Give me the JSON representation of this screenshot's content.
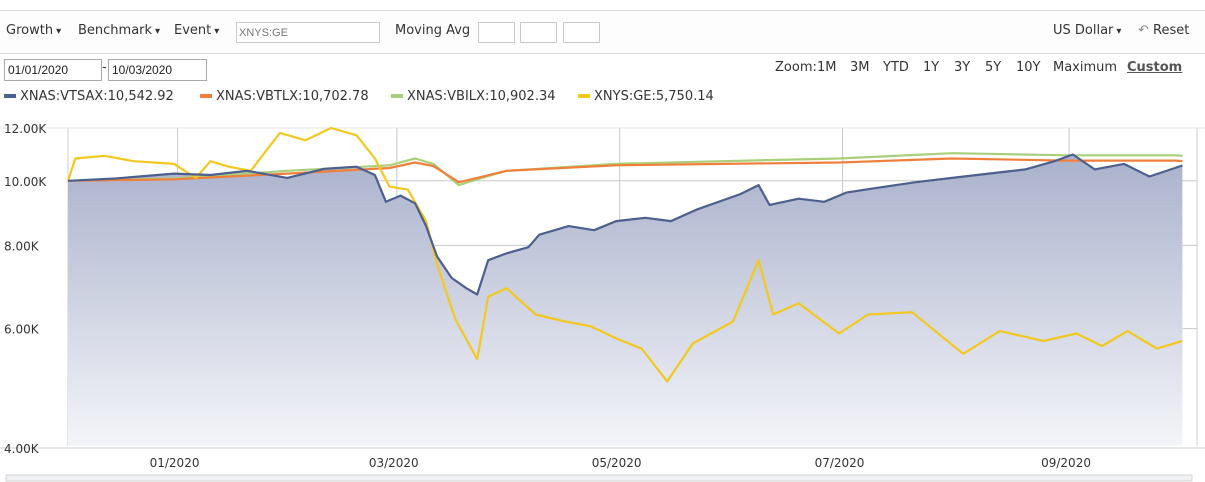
{
  "toolbar": {
    "growth_label": "Growth",
    "benchmark_label": "Benchmark",
    "event_label": "Event",
    "symbol_placeholder": "XNYS:GE",
    "moving_avg_label": "Moving Avg",
    "currency_label": "US Dollar",
    "reset_label": "Reset",
    "caret": "▾",
    "reset_icon": "↶"
  },
  "dates": {
    "start": "01/01/2020",
    "separator": "-",
    "end": "10/03/2020"
  },
  "zoom": {
    "label": "Zoom:",
    "options": [
      "1M",
      "3M",
      "YTD",
      "1Y",
      "3Y",
      "5Y",
      "10Y",
      "Maximum",
      "Custom"
    ],
    "active": "Custom"
  },
  "chart_data": {
    "type": "line",
    "y_axis": {
      "ticks": [
        {
          "value": 4000,
          "label": "4.00K"
        },
        {
          "value": 6000,
          "label": "6.00K"
        },
        {
          "value": 8000,
          "label": "8.00K"
        },
        {
          "value": 10000,
          "label": "10.00K"
        },
        {
          "value": 12000,
          "label": "12.00K"
        }
      ],
      "range": [
        4000,
        12000
      ],
      "scale": "log"
    },
    "x_axis": {
      "range": [
        "2019-12-02",
        "2020-10-06"
      ],
      "ticks": [
        {
          "date": "2020-01-01",
          "label": "01/2020"
        },
        {
          "date": "2020-03-01",
          "label": "03/2020"
        },
        {
          "date": "2020-05-01",
          "label": "05/2020"
        },
        {
          "date": "2020-07-01",
          "label": "07/2020"
        },
        {
          "date": "2020-09-01",
          "label": "09/2020"
        }
      ]
    },
    "grid": true,
    "series": [
      {
        "name": "XNAS:VTSAX",
        "legend": "XNAS:VTSAX:10,542.92",
        "color": "#4d5f8e",
        "fill": true,
        "points": [
          [
            "2019-12-02",
            10000
          ],
          [
            "2019-12-15",
            10080
          ],
          [
            "2019-12-31",
            10250
          ],
          [
            "2020-01-10",
            10200
          ],
          [
            "2020-01-20",
            10350
          ],
          [
            "2020-01-31",
            10100
          ],
          [
            "2020-02-10",
            10420
          ],
          [
            "2020-02-19",
            10500
          ],
          [
            "2020-02-24",
            10200
          ],
          [
            "2020-02-27",
            9300
          ],
          [
            "2020-03-02",
            9500
          ],
          [
            "2020-03-06",
            9250
          ],
          [
            "2020-03-09",
            8550
          ],
          [
            "2020-03-12",
            7700
          ],
          [
            "2020-03-16",
            7150
          ],
          [
            "2020-03-20",
            6900
          ],
          [
            "2020-03-23",
            6750
          ],
          [
            "2020-03-26",
            7600
          ],
          [
            "2020-03-31",
            7780
          ],
          [
            "2020-04-06",
            7950
          ],
          [
            "2020-04-09",
            8300
          ],
          [
            "2020-04-17",
            8550
          ],
          [
            "2020-04-24",
            8430
          ],
          [
            "2020-04-30",
            8700
          ],
          [
            "2020-05-08",
            8800
          ],
          [
            "2020-05-15",
            8700
          ],
          [
            "2020-05-22",
            9050
          ],
          [
            "2020-06-03",
            9550
          ],
          [
            "2020-06-08",
            9850
          ],
          [
            "2020-06-11",
            9200
          ],
          [
            "2020-06-19",
            9400
          ],
          [
            "2020-06-26",
            9300
          ],
          [
            "2020-07-02",
            9600
          ],
          [
            "2020-07-10",
            9750
          ],
          [
            "2020-07-21",
            9950
          ],
          [
            "2020-07-31",
            10100
          ],
          [
            "2020-08-10",
            10250
          ],
          [
            "2020-08-20",
            10400
          ],
          [
            "2020-08-28",
            10700
          ],
          [
            "2020-09-02",
            10950
          ],
          [
            "2020-09-08",
            10400
          ],
          [
            "2020-09-16",
            10600
          ],
          [
            "2020-09-23",
            10150
          ],
          [
            "2020-10-02",
            10542.92
          ]
        ]
      },
      {
        "name": "XNAS:VBTLX",
        "legend": "XNAS:VBTLX:10,702.78",
        "color": "#f07f3c",
        "fill": false,
        "points": [
          [
            "2019-12-02",
            10000
          ],
          [
            "2019-12-31",
            10050
          ],
          [
            "2020-01-31",
            10250
          ],
          [
            "2020-02-28",
            10450
          ],
          [
            "2020-03-06",
            10650
          ],
          [
            "2020-03-11",
            10520
          ],
          [
            "2020-03-18",
            9950
          ],
          [
            "2020-03-23",
            10100
          ],
          [
            "2020-03-31",
            10350
          ],
          [
            "2020-04-30",
            10550
          ],
          [
            "2020-05-29",
            10600
          ],
          [
            "2020-06-30",
            10650
          ],
          [
            "2020-07-31",
            10800
          ],
          [
            "2020-08-31",
            10720
          ],
          [
            "2020-09-30",
            10720
          ],
          [
            "2020-10-02",
            10702.78
          ]
        ]
      },
      {
        "name": "XNAS:VBILX",
        "legend": "XNAS:VBILX:10,902.34",
        "color": "#a9cf7a",
        "fill": false,
        "points": [
          [
            "2019-12-02",
            10000
          ],
          [
            "2019-12-31",
            10080
          ],
          [
            "2020-01-31",
            10350
          ],
          [
            "2020-02-28",
            10550
          ],
          [
            "2020-03-06",
            10800
          ],
          [
            "2020-03-11",
            10600
          ],
          [
            "2020-03-18",
            9850
          ],
          [
            "2020-03-23",
            10050
          ],
          [
            "2020-03-31",
            10350
          ],
          [
            "2020-04-30",
            10600
          ],
          [
            "2020-05-29",
            10700
          ],
          [
            "2020-06-30",
            10800
          ],
          [
            "2020-07-31",
            11000
          ],
          [
            "2020-08-31",
            10920
          ],
          [
            "2020-09-30",
            10920
          ],
          [
            "2020-10-02",
            10902.34
          ]
        ]
      },
      {
        "name": "XNYS:GE",
        "legend": "XNYS:GE:5,750.14",
        "color": "#f2c81e",
        "fill": false,
        "points": [
          [
            "2019-12-02",
            10000
          ],
          [
            "2019-12-04",
            10800
          ],
          [
            "2019-12-12",
            10900
          ],
          [
            "2019-12-20",
            10700
          ],
          [
            "2019-12-31",
            10600
          ],
          [
            "2020-01-06",
            10100
          ],
          [
            "2020-01-10",
            10700
          ],
          [
            "2020-01-15",
            10500
          ],
          [
            "2020-01-21",
            10350
          ],
          [
            "2020-01-29",
            11800
          ],
          [
            "2020-02-05",
            11500
          ],
          [
            "2020-02-12",
            12000
          ],
          [
            "2020-02-19",
            11700
          ],
          [
            "2020-02-24",
            10800
          ],
          [
            "2020-02-28",
            9800
          ],
          [
            "2020-03-04",
            9700
          ],
          [
            "2020-03-09",
            8700
          ],
          [
            "2020-03-12",
            7500
          ],
          [
            "2020-03-17",
            6200
          ],
          [
            "2020-03-23",
            5400
          ],
          [
            "2020-03-26",
            6700
          ],
          [
            "2020-03-31",
            6900
          ],
          [
            "2020-04-08",
            6300
          ],
          [
            "2020-04-16",
            6150
          ],
          [
            "2020-04-23",
            6050
          ],
          [
            "2020-04-30",
            5800
          ],
          [
            "2020-05-07",
            5600
          ],
          [
            "2020-05-14",
            5000
          ],
          [
            "2020-05-21",
            5700
          ],
          [
            "2020-06-01",
            6150
          ],
          [
            "2020-06-08",
            7600
          ],
          [
            "2020-06-12",
            6300
          ],
          [
            "2020-06-19",
            6550
          ],
          [
            "2020-06-30",
            5900
          ],
          [
            "2020-07-08",
            6300
          ],
          [
            "2020-07-20",
            6350
          ],
          [
            "2020-08-03",
            5500
          ],
          [
            "2020-08-13",
            5950
          ],
          [
            "2020-08-25",
            5750
          ],
          [
            "2020-09-03",
            5900
          ],
          [
            "2020-09-10",
            5650
          ],
          [
            "2020-09-17",
            5950
          ],
          [
            "2020-09-25",
            5600
          ],
          [
            "2020-10-02",
            5750.14
          ]
        ]
      }
    ]
  }
}
